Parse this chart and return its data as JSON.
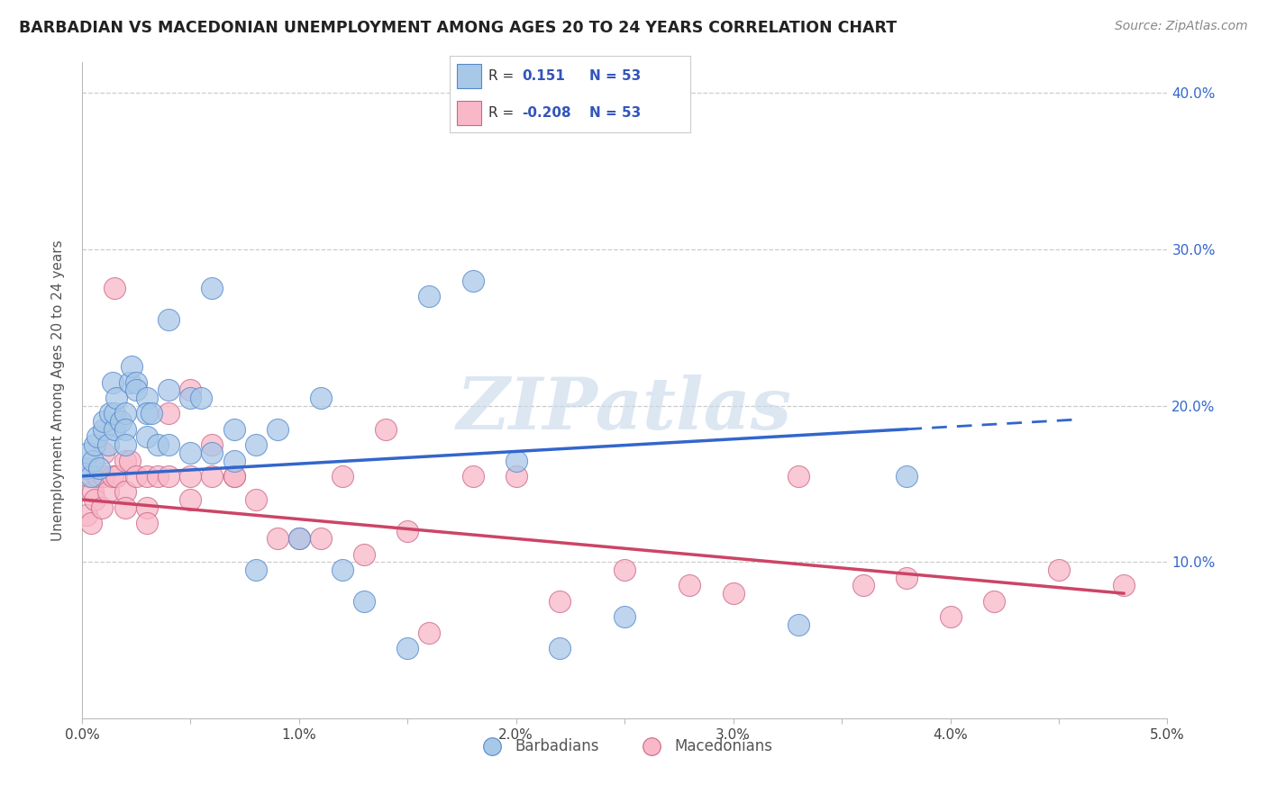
{
  "title": "BARBADIAN VS MACEDONIAN UNEMPLOYMENT AMONG AGES 20 TO 24 YEARS CORRELATION CHART",
  "source": "Source: ZipAtlas.com",
  "ylabel": "Unemployment Among Ages 20 to 24 years",
  "xlim": [
    0.0,
    0.05
  ],
  "ylim": [
    0.0,
    0.42
  ],
  "barbadian_color": "#a8c8e8",
  "barbadian_edge": "#5588cc",
  "macedonian_color": "#f8b8c8",
  "macedonian_edge": "#cc6688",
  "trend_blue": "#3366cc",
  "trend_pink": "#cc4466",
  "legend_text_color": "#3355bb",
  "watermark_color": "#c5d8ea",
  "R_barbadian": "0.151",
  "R_macedonian": "-0.208",
  "N": "53",
  "barbadian_x": [
    0.0002,
    0.0003,
    0.0004,
    0.0005,
    0.0006,
    0.0007,
    0.0008,
    0.001,
    0.001,
    0.0012,
    0.0013,
    0.0014,
    0.0015,
    0.0015,
    0.0016,
    0.0018,
    0.002,
    0.002,
    0.002,
    0.0022,
    0.0023,
    0.0025,
    0.0025,
    0.003,
    0.003,
    0.003,
    0.0032,
    0.0035,
    0.004,
    0.004,
    0.004,
    0.005,
    0.005,
    0.0055,
    0.006,
    0.006,
    0.007,
    0.007,
    0.008,
    0.008,
    0.009,
    0.01,
    0.011,
    0.012,
    0.013,
    0.015,
    0.016,
    0.018,
    0.02,
    0.022,
    0.025,
    0.033,
    0.038
  ],
  "barbadian_y": [
    0.16,
    0.17,
    0.155,
    0.165,
    0.175,
    0.18,
    0.16,
    0.185,
    0.19,
    0.175,
    0.195,
    0.215,
    0.185,
    0.195,
    0.205,
    0.19,
    0.195,
    0.185,
    0.175,
    0.215,
    0.225,
    0.215,
    0.21,
    0.205,
    0.195,
    0.18,
    0.195,
    0.175,
    0.255,
    0.21,
    0.175,
    0.205,
    0.17,
    0.205,
    0.275,
    0.17,
    0.185,
    0.165,
    0.175,
    0.095,
    0.185,
    0.115,
    0.205,
    0.095,
    0.075,
    0.045,
    0.27,
    0.28,
    0.165,
    0.045,
    0.065,
    0.06,
    0.155
  ],
  "macedonian_x": [
    0.0002,
    0.0003,
    0.0004,
    0.0005,
    0.0006,
    0.0007,
    0.0009,
    0.001,
    0.001,
    0.0012,
    0.0014,
    0.0015,
    0.0016,
    0.002,
    0.002,
    0.002,
    0.0022,
    0.0025,
    0.003,
    0.003,
    0.003,
    0.0035,
    0.004,
    0.004,
    0.005,
    0.005,
    0.005,
    0.006,
    0.006,
    0.007,
    0.007,
    0.008,
    0.009,
    0.01,
    0.011,
    0.012,
    0.013,
    0.014,
    0.015,
    0.016,
    0.018,
    0.02,
    0.022,
    0.025,
    0.028,
    0.03,
    0.033,
    0.036,
    0.038,
    0.04,
    0.042,
    0.045,
    0.048
  ],
  "macedonian_y": [
    0.13,
    0.155,
    0.125,
    0.145,
    0.14,
    0.155,
    0.135,
    0.155,
    0.17,
    0.145,
    0.155,
    0.275,
    0.155,
    0.165,
    0.145,
    0.135,
    0.165,
    0.155,
    0.155,
    0.135,
    0.125,
    0.155,
    0.195,
    0.155,
    0.21,
    0.155,
    0.14,
    0.175,
    0.155,
    0.155,
    0.155,
    0.14,
    0.115,
    0.115,
    0.115,
    0.155,
    0.105,
    0.185,
    0.12,
    0.055,
    0.155,
    0.155,
    0.075,
    0.095,
    0.085,
    0.08,
    0.155,
    0.085,
    0.09,
    0.065,
    0.075,
    0.095,
    0.085
  ],
  "trend_b_x0": 0.0,
  "trend_b_x1": 0.038,
  "trend_b_x_dash": 0.046,
  "trend_b_y0": 0.155,
  "trend_b_y1": 0.185,
  "trend_m_x0": 0.0,
  "trend_m_x1": 0.048,
  "trend_m_y0": 0.14,
  "trend_m_y1": 0.08
}
